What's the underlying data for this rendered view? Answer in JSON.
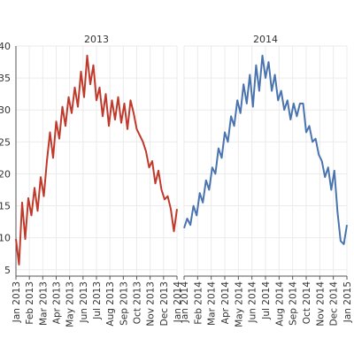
{
  "chart_data": {
    "type": "line",
    "grid": true,
    "legend": "none",
    "ylim": [
      4,
      40
    ],
    "yticks": [
      5,
      10,
      15,
      20,
      25,
      30,
      35,
      40
    ],
    "panels": [
      {
        "title": "2013",
        "color": "#c0392b",
        "xticks": [
          "Jan 2013",
          "Feb 2013",
          "Mar 2013",
          "Apr 2013",
          "May 2013",
          "Jun 2013",
          "Jul 2013",
          "Aug 2013",
          "Sep 2013",
          "Oct 2013",
          "Nov 2013",
          "Dec 2013",
          "Jan 2014"
        ],
        "x": [
          "2013-01-01",
          "2013-01-08",
          "2013-01-15",
          "2013-01-22",
          "2013-01-29",
          "2013-02-05",
          "2013-02-12",
          "2013-02-19",
          "2013-02-26",
          "2013-03-05",
          "2013-03-12",
          "2013-03-19",
          "2013-03-26",
          "2013-04-02",
          "2013-04-09",
          "2013-04-16",
          "2013-04-23",
          "2013-04-30",
          "2013-05-07",
          "2013-05-14",
          "2013-05-21",
          "2013-05-28",
          "2013-06-04",
          "2013-06-11",
          "2013-06-18",
          "2013-06-25",
          "2013-07-02",
          "2013-07-09",
          "2013-07-16",
          "2013-07-23",
          "2013-07-30",
          "2013-08-06",
          "2013-08-13",
          "2013-08-20",
          "2013-08-27",
          "2013-09-03",
          "2013-09-10",
          "2013-09-17",
          "2013-09-24",
          "2013-10-01",
          "2013-10-08",
          "2013-10-15",
          "2013-10-22",
          "2013-10-29",
          "2013-11-05",
          "2013-11-12",
          "2013-11-19",
          "2013-11-26",
          "2013-12-03",
          "2013-12-10",
          "2013-12-17",
          "2013-12-24",
          "2013-12-31"
        ],
        "values": [
          9.8,
          5.8,
          15.5,
          9.8,
          16.2,
          13.5,
          17.8,
          14.2,
          19.5,
          16.5,
          22.0,
          26.5,
          22.5,
          28.2,
          25.5,
          30.5,
          27.5,
          32.0,
          29.5,
          33.5,
          30.5,
          36.0,
          32.0,
          38.5,
          34.0,
          37.0,
          31.5,
          33.5,
          29.0,
          32.5,
          27.5,
          31.5,
          28.5,
          32.0,
          28.0,
          31.0,
          27.0,
          31.5,
          29.5,
          27.0,
          26.0,
          25.0,
          23.5,
          21.0,
          22.0,
          18.5,
          20.5,
          17.5,
          16.0,
          16.5,
          14.5,
          11.0,
          14.5
        ]
      },
      {
        "title": "2014",
        "color": "#4a74b0",
        "xticks": [
          "Jan 2014",
          "Feb 2014",
          "Mar 2014",
          "Apr 2014",
          "May 2014",
          "Jun 2014",
          "Jul 2014",
          "Aug 2014",
          "Sep 2014",
          "Oct 2014",
          "Nov 2014",
          "Dec 2014",
          "Jan 2015"
        ],
        "x": [
          "2014-01-01",
          "2014-01-08",
          "2014-01-15",
          "2014-01-22",
          "2014-01-29",
          "2014-02-05",
          "2014-02-12",
          "2014-02-19",
          "2014-02-26",
          "2014-03-05",
          "2014-03-12",
          "2014-03-19",
          "2014-03-26",
          "2014-04-02",
          "2014-04-09",
          "2014-04-16",
          "2014-04-23",
          "2014-04-30",
          "2014-05-07",
          "2014-05-14",
          "2014-05-21",
          "2014-05-28",
          "2014-06-04",
          "2014-06-11",
          "2014-06-18",
          "2014-06-25",
          "2014-07-02",
          "2014-07-09",
          "2014-07-16",
          "2014-07-23",
          "2014-07-30",
          "2014-08-06",
          "2014-08-13",
          "2014-08-20",
          "2014-08-27",
          "2014-09-03",
          "2014-09-10",
          "2014-09-17",
          "2014-09-24",
          "2014-10-01",
          "2014-10-08",
          "2014-10-15",
          "2014-10-22",
          "2014-10-29",
          "2014-11-05",
          "2014-11-12",
          "2014-11-19",
          "2014-11-26",
          "2014-12-03",
          "2014-12-10",
          "2014-12-17",
          "2014-12-24",
          "2014-12-31"
        ],
        "values": [
          11.5,
          13.0,
          12.0,
          15.0,
          13.5,
          17.0,
          15.5,
          19.0,
          17.5,
          21.0,
          20.0,
          24.0,
          22.5,
          26.5,
          25.0,
          29.0,
          27.5,
          31.5,
          29.5,
          34.0,
          31.0,
          35.5,
          30.5,
          37.0,
          33.0,
          38.5,
          35.0,
          37.5,
          33.0,
          35.5,
          31.5,
          33.0,
          30.0,
          31.5,
          28.5,
          31.0,
          29.0,
          31.0,
          31.0,
          26.5,
          27.5,
          25.0,
          25.5,
          23.0,
          22.0,
          19.5,
          21.0,
          17.5,
          20.5,
          14.0,
          9.5,
          9.0,
          12.0
        ]
      }
    ]
  }
}
